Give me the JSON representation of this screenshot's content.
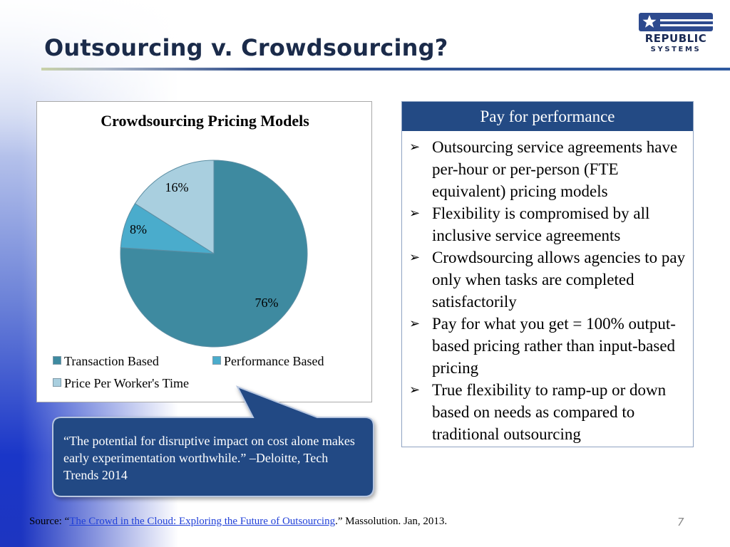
{
  "slide": {
    "title": "Outsourcing v. Crowdsourcing?",
    "page_number": "7"
  },
  "logo": {
    "line1": "REPUBLIC",
    "line2": "SYSTEMS",
    "flag_color": "#2d4a8e",
    "star_color": "#ffffff"
  },
  "chart_data": {
    "type": "pie",
    "title": "Crowdsourcing Pricing Models",
    "categories": [
      "Transaction Based",
      "Performance Based",
      "Price Per Worker's Time"
    ],
    "values": [
      76,
      8,
      16
    ],
    "labels": [
      "76%",
      "8%",
      "16%"
    ],
    "colors": [
      "#3e8aa0",
      "#4aaccc",
      "#a9cfdf"
    ],
    "legend_position": "bottom"
  },
  "quote": {
    "text": "“The potential for disruptive impact on cost alone makes early experimentation worthwhile.” –Deloitte, Tech Trends 2014",
    "bubble_color": "#234a84"
  },
  "panel": {
    "header": "Pay for performance",
    "items": [
      "Outsourcing service agreements have per-hour or per-person (FTE equivalent) pricing models",
      "Flexibility is compromised by all inclusive service agreements",
      "Crowdsourcing allows agencies to pay only when tasks are completed satisfactorily",
      "Pay for what you get = 100% output-based pricing rather than input-based pricing",
      "True flexibility to ramp-up or down based on needs as compared to traditional outsourcing"
    ]
  },
  "source": {
    "prefix": "Source: “",
    "link_text": "The Crowd in the Cloud: Exploring the Future of Outsourcing",
    "suffix": ".” Massolution. Jan, 2013."
  }
}
